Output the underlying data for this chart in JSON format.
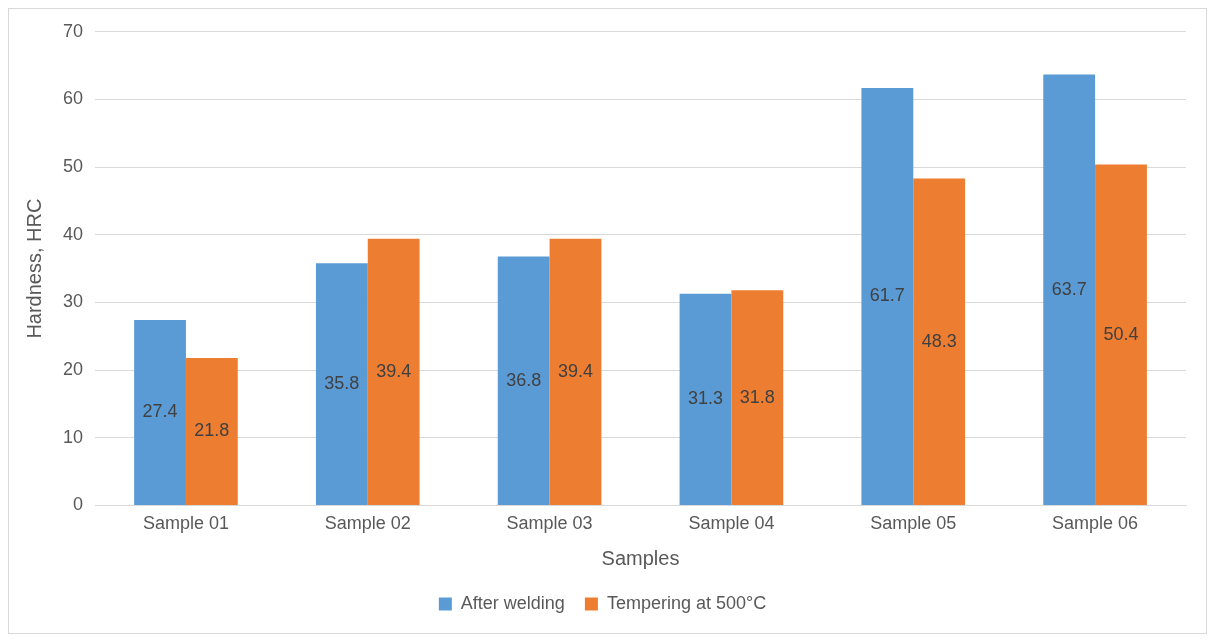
{
  "chart_data": {
    "type": "bar",
    "xlabel": "Samples",
    "ylabel": "Hardness, HRC",
    "categories": [
      "Sample 01",
      "Sample 02",
      "Sample 03",
      "Sample 04",
      "Sample 05",
      "Sample 06"
    ],
    "series": [
      {
        "name": "After welding",
        "color": "#5b9bd5",
        "values": [
          27.4,
          35.8,
          36.8,
          31.3,
          61.7,
          63.7
        ]
      },
      {
        "name": "Tempering at 500°C",
        "color": "#ed7d31",
        "values": [
          21.8,
          39.4,
          39.4,
          31.8,
          48.3,
          50.4
        ]
      }
    ],
    "ylim": [
      0,
      70
    ],
    "yticks": [
      0,
      10,
      20,
      30,
      40,
      50,
      60,
      70
    ],
    "grid": "y",
    "legend": "bottom",
    "data_labels": true
  }
}
